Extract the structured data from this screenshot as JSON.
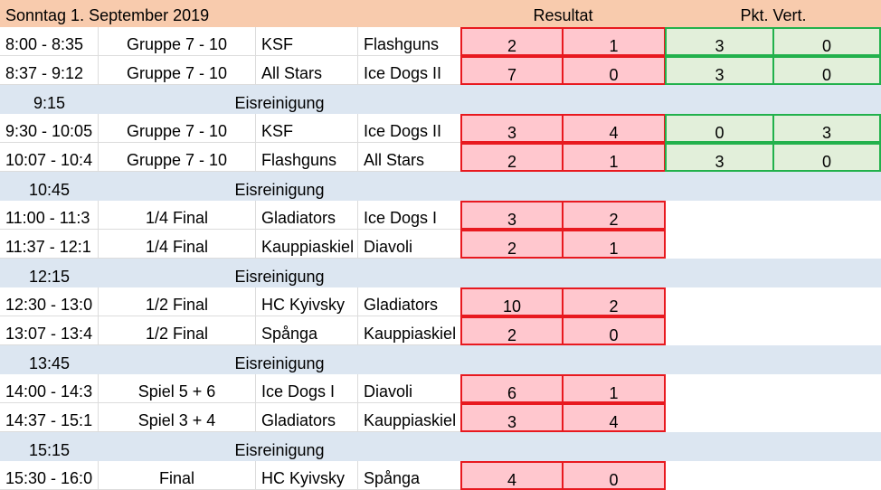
{
  "header": {
    "date": "Sonntag 1. September 2019",
    "result_label": "Resultat",
    "points_label": "Pkt. Vert."
  },
  "rows": [
    {
      "type": "game",
      "time": "8:00 - 8:35",
      "group": "Gruppe 7 - 10",
      "home": "KSF",
      "away": "Flashguns",
      "score_home": "2",
      "score_away": "1",
      "pts_home": "3",
      "pts_away": "0"
    },
    {
      "type": "game",
      "time": "8:37 - 9:12",
      "group": "Gruppe 7 - 10",
      "home": "All Stars",
      "away": "Ice Dogs II",
      "score_home": "7",
      "score_away": "0",
      "pts_home": "3",
      "pts_away": "0"
    },
    {
      "type": "break",
      "time": "9:15",
      "label": "Eisreinigung"
    },
    {
      "type": "game",
      "time": "9:30 - 10:05",
      "group": "Gruppe 7 - 10",
      "home": "KSF",
      "away": "Ice Dogs II",
      "score_home": "3",
      "score_away": "4",
      "pts_home": "0",
      "pts_away": "3"
    },
    {
      "type": "game",
      "time": "10:07 - 10:4",
      "group": "Gruppe 7 - 10",
      "home": "Flashguns",
      "away": "All Stars",
      "score_home": "2",
      "score_away": "1",
      "pts_home": "3",
      "pts_away": "0"
    },
    {
      "type": "break",
      "time": "10:45",
      "label": "Eisreinigung"
    },
    {
      "type": "game",
      "time": "11:00 - 11:3",
      "group": "1/4 Final",
      "home": "Gladiators",
      "away": "Ice Dogs I",
      "score_home": "3",
      "score_away": "2"
    },
    {
      "type": "game",
      "time": "11:37 - 12:1",
      "group": "1/4 Final",
      "home": "Kauppiaskiel",
      "away": "Diavoli",
      "score_home": "2",
      "score_away": "1"
    },
    {
      "type": "break",
      "time": "12:15",
      "label": "Eisreinigung"
    },
    {
      "type": "game",
      "time": "12:30 - 13:0",
      "group": "1/2 Final",
      "home": "HC Kyivsky",
      "away": "Gladiators",
      "score_home": "10",
      "score_away": "2"
    },
    {
      "type": "game",
      "time": "13:07 - 13:4",
      "group": "1/2 Final",
      "home": "Spånga",
      "away": "Kauppiaskiel",
      "score_home": "2",
      "score_away": "0"
    },
    {
      "type": "break",
      "time": "13:45",
      "label": "Eisreinigung"
    },
    {
      "type": "game",
      "time": "14:00 - 14:3",
      "group": "Spiel 5 + 6",
      "home": "Ice Dogs I",
      "away": "Diavoli",
      "score_home": "6",
      "score_away": "1"
    },
    {
      "type": "game",
      "time": "14:37 - 15:1",
      "group": "Spiel 3 + 4",
      "home": "Gladiators",
      "away": "Kauppiaskiel",
      "score_home": "3",
      "score_away": "4"
    },
    {
      "type": "break",
      "time": "15:15",
      "label": "Eisreinigung"
    },
    {
      "type": "game",
      "time": "15:30 - 16:0",
      "group": "Final",
      "home": "HC Kyivsky",
      "away": "Spånga",
      "score_home": "4",
      "score_away": "0"
    }
  ]
}
